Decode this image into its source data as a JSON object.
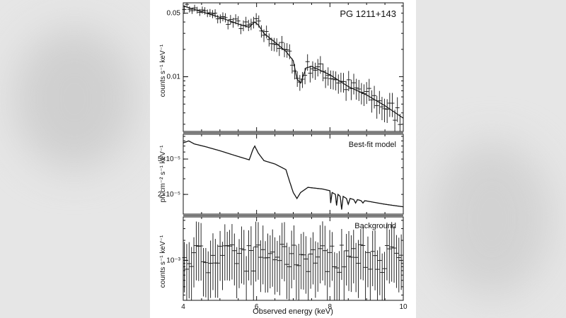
{
  "chart_data": [
    {
      "type": "scatter",
      "panel": "top",
      "title": "PG 1211+143",
      "ylabel": "counts s⁻¹ keV⁻¹",
      "ylog": true,
      "ylim": [
        0.0025,
        0.065
      ],
      "xlim": [
        4,
        10
      ],
      "y_ticks": [
        {
          "v": 0.05,
          "label": "0.05"
        },
        {
          "v": 0.01,
          "label": "0.01"
        }
      ],
      "model_curve": [
        [
          4.0,
          0.06
        ],
        [
          4.5,
          0.052
        ],
        [
          5.0,
          0.045
        ],
        [
          5.5,
          0.038
        ],
        [
          5.8,
          0.035
        ],
        [
          5.95,
          0.04
        ],
        [
          6.05,
          0.037
        ],
        [
          6.2,
          0.03
        ],
        [
          6.5,
          0.024
        ],
        [
          6.8,
          0.019
        ],
        [
          7.0,
          0.015
        ],
        [
          7.1,
          0.0095
        ],
        [
          7.2,
          0.0085
        ],
        [
          7.35,
          0.0125
        ],
        [
          7.5,
          0.013
        ],
        [
          8.0,
          0.0105
        ],
        [
          8.5,
          0.0078
        ],
        [
          9.0,
          0.0063
        ],
        [
          9.5,
          0.0048
        ],
        [
          10.0,
          0.0035
        ]
      ]
    },
    {
      "type": "line",
      "panel": "middle",
      "title": "Best-fit model",
      "ylabel": "ph cm⁻² s⁻¹ keV⁻¹",
      "ylog": true,
      "ylim": [
        1.2e-05,
        9.5e-05
      ],
      "xlim": [
        4,
        10
      ],
      "y_ticks": [
        {
          "v": 5e-05,
          "label": "5×10⁻⁵"
        },
        {
          "v": 2e-05,
          "label": "2×10⁻⁵"
        }
      ],
      "model_curve": [
        [
          4.0,
          7.6e-05
        ],
        [
          4.15,
          8e-05
        ],
        [
          4.3,
          7.4e-05
        ],
        [
          4.6,
          6.9e-05
        ],
        [
          5.0,
          6.2e-05
        ],
        [
          5.4,
          5.5e-05
        ],
        [
          5.8,
          4.9e-05
        ],
        [
          5.9,
          6.4e-05
        ],
        [
          5.95,
          7e-05
        ],
        [
          6.05,
          5.8e-05
        ],
        [
          6.2,
          4.8e-05
        ],
        [
          6.5,
          4.4e-05
        ],
        [
          6.8,
          3.8e-05
        ],
        [
          6.9,
          2.8e-05
        ],
        [
          7.0,
          2.1e-05
        ],
        [
          7.1,
          1.8e-05
        ],
        [
          7.2,
          2.1e-05
        ],
        [
          7.4,
          2.4e-05
        ],
        [
          7.8,
          2.3e-05
        ],
        [
          8.0,
          2.2e-05
        ],
        [
          8.02,
          1.6e-05
        ],
        [
          8.06,
          2.1e-05
        ],
        [
          8.15,
          2e-05
        ],
        [
          8.18,
          1.5e-05
        ],
        [
          8.22,
          2e-05
        ],
        [
          8.28,
          1.9e-05
        ],
        [
          8.32,
          1.35e-05
        ],
        [
          8.36,
          1.9e-05
        ],
        [
          8.45,
          1.8e-05
        ],
        [
          8.5,
          1.55e-05
        ],
        [
          8.55,
          1.8e-05
        ],
        [
          8.65,
          1.75e-05
        ],
        [
          8.7,
          1.6e-05
        ],
        [
          8.75,
          1.75e-05
        ],
        [
          8.85,
          1.7e-05
        ],
        [
          8.9,
          1.6e-05
        ],
        [
          8.95,
          1.7e-05
        ],
        [
          9.5,
          1.55e-05
        ],
        [
          10.0,
          1.45e-05
        ]
      ]
    },
    {
      "type": "scatter",
      "panel": "bottom",
      "title": "Background",
      "ylabel": "counts s⁻¹ keV⁻¹",
      "ylog": true,
      "ylim": [
        0.00025,
        0.0045
      ],
      "xlim": [
        4,
        10
      ],
      "xlabel": "Observed energy (keV)",
      "x_ticks": [
        4,
        6,
        8,
        10
      ],
      "y_ticks": [
        {
          "v": 0.001,
          "label": "10⁻³"
        }
      ]
    }
  ]
}
